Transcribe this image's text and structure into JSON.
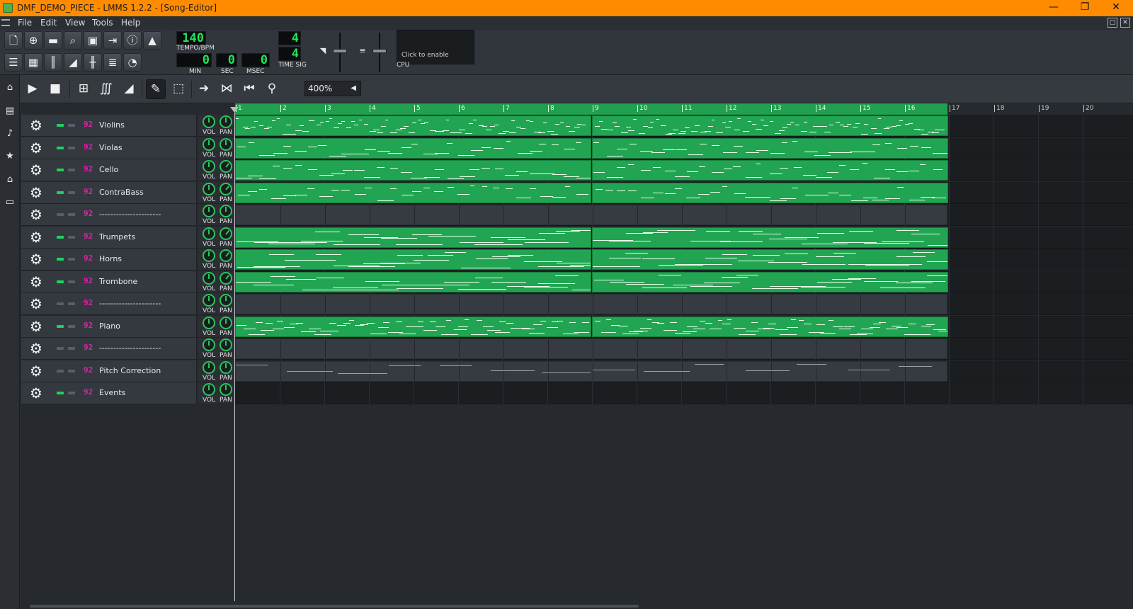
{
  "window": {
    "title": "DMF_DEMO_PIECE - LMMS 1.2.2 - [Song-Editor]",
    "controls": [
      "—",
      "❐",
      "✕"
    ]
  },
  "menu": {
    "items": [
      {
        "label": "File"
      },
      {
        "label": "Edit"
      },
      {
        "label": "View"
      },
      {
        "label": "Tools"
      },
      {
        "label": "Help"
      }
    ]
  },
  "toolbar": {
    "tempo_value": "140",
    "tempo_label": "TEMPO/BPM",
    "min_value": "0",
    "min_label": "MIN",
    "sec_value": "0",
    "sec_label": "SEC",
    "msec_value": "0",
    "msec_label": "MSEC",
    "timesig_num": "4",
    "timesig_den": "4",
    "timesig_label": "TIME SIG",
    "cpu_enable_text": "Click to enable",
    "cpu_label": "CPU"
  },
  "song_editor": {
    "zoom": "400%",
    "timeline": [
      "1",
      "2",
      "3",
      "4",
      "5",
      "6",
      "7",
      "8",
      "9",
      "10",
      "11",
      "12",
      "13",
      "14",
      "15",
      "16",
      "17",
      "18",
      "19",
      "20"
    ],
    "song_length_bars": 16
  },
  "tracks": [
    {
      "name": "Violins",
      "type": "instrument",
      "muted": false,
      "vol_label": "VOL",
      "pan_label": "PAN"
    },
    {
      "name": "Violas",
      "type": "instrument",
      "muted": false,
      "vol_label": "VOL",
      "pan_label": "PAN"
    },
    {
      "name": "Cello",
      "type": "instrument",
      "muted": false,
      "vol_label": "VOL",
      "pan_label": "PAN"
    },
    {
      "name": "ContraBass",
      "type": "instrument",
      "muted": false,
      "vol_label": "VOL",
      "pan_label": "PAN"
    },
    {
      "name": "----------------------",
      "type": "separator",
      "muted": true,
      "vol_label": "VOL",
      "pan_label": "PAN"
    },
    {
      "name": "Trumpets",
      "type": "instrument",
      "muted": false,
      "vol_label": "VOL",
      "pan_label": "PAN"
    },
    {
      "name": "Horns",
      "type": "instrument",
      "muted": false,
      "vol_label": "VOL",
      "pan_label": "PAN"
    },
    {
      "name": "Trombone",
      "type": "instrument",
      "muted": false,
      "vol_label": "VOL",
      "pan_label": "PAN"
    },
    {
      "name": "----------------------",
      "type": "separator",
      "muted": true,
      "vol_label": "VOL",
      "pan_label": "PAN"
    },
    {
      "name": "Piano",
      "type": "instrument",
      "muted": false,
      "vol_label": "VOL",
      "pan_label": "PAN"
    },
    {
      "name": "----------------------",
      "type": "separator",
      "muted": true,
      "vol_label": "VOL",
      "pan_label": "PAN"
    },
    {
      "name": "Pitch Correction",
      "type": "automation",
      "muted": true,
      "vol_label": "VOL",
      "pan_label": "PAN"
    },
    {
      "name": "Events",
      "type": "empty",
      "muted": false,
      "vol_label": "VOL",
      "pan_label": "PAN"
    }
  ],
  "colors": {
    "title_bar": "#ff8c00",
    "clip_green": "#22a552",
    "lcd_green": "#21e35a",
    "instrument_icon": "#e21ea8"
  }
}
